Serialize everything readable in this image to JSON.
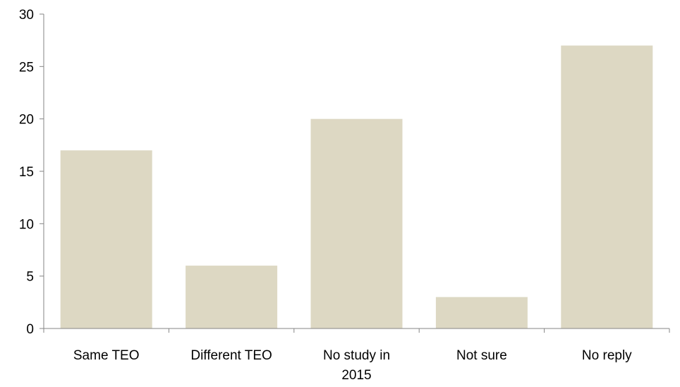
{
  "chart_data": {
    "type": "bar",
    "title": "",
    "xlabel": "",
    "ylabel": "",
    "categories": [
      [
        "Same TEO"
      ],
      [
        "Different TEO"
      ],
      [
        "No study in",
        "2015"
      ],
      [
        "Not sure"
      ],
      [
        "No reply"
      ]
    ],
    "values": [
      17,
      6,
      20,
      3,
      27
    ],
    "ylim": [
      0,
      30
    ],
    "yticks": [
      0,
      5,
      10,
      15,
      20,
      25,
      30
    ],
    "grid": false,
    "legend": "none",
    "bar_color": "#ddd8c3",
    "axis_color": "#868686"
  }
}
